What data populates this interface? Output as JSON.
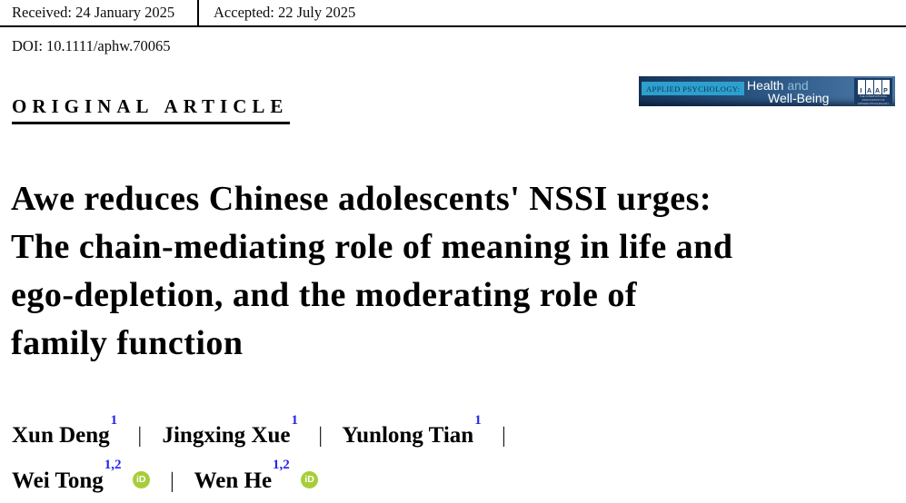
{
  "meta_bar": {
    "received": "Received: 24 January 2025",
    "accepted": "Accepted: 22 July 2025"
  },
  "doi_line": "DOI: 10.1111/aphw.70065",
  "section": {
    "label": "ORIGINAL ARTICLE"
  },
  "journal_banner": {
    "series_label": "APPLIED PSYCHOLOGY:",
    "name_part1": "Health",
    "name_conjunction": "and",
    "name_part2": "Well-Being",
    "iaap_letters": [
      "I",
      "A",
      "A",
      "P"
    ],
    "iaap_tagline": "THE INTERNATIONAL ASSOCIATION OF APPLIED PSYCHOLOGY",
    "colors": {
      "gradient_left": "#16355b",
      "gradient_right": "#4f7dab",
      "series_box": "#2da0cd",
      "series_text": "#0b3560",
      "iaap_bg": "#1b3a63",
      "conjunction_text": "#8fbcd8"
    }
  },
  "title": {
    "lines": [
      "Awe reduces Chinese adolescents' NSSI urges:",
      "The chain-mediating role of meaning in life and",
      "ego-depletion, and the moderating role of",
      "family function"
    ]
  },
  "authors": {
    "separator": "|",
    "superscript_color": "#2424f0",
    "line1": [
      {
        "name": "Xun Deng",
        "affiliations": "1"
      },
      {
        "name": "Jingxing Xue",
        "affiliations": "1"
      },
      {
        "name": "Yunlong Tian",
        "affiliations": "1"
      }
    ],
    "line2": [
      {
        "name": "Wei Tong",
        "affiliations": "1,2"
      },
      {
        "name": "Wen He",
        "affiliations": "1,2"
      }
    ]
  },
  "orcid": {
    "label": "iD",
    "color": "#a6ce39"
  }
}
